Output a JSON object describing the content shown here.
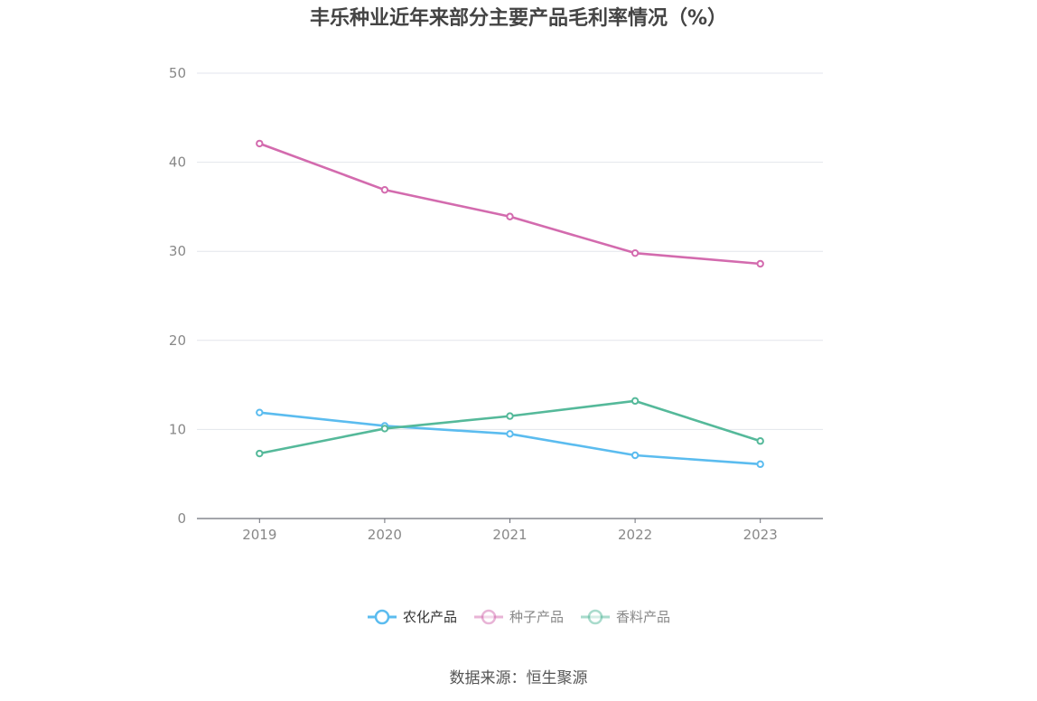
{
  "chart_data": {
    "type": "line",
    "title": "丰乐种业近年来部分主要产品毛利率情况（%）",
    "categories": [
      "2019",
      "2020",
      "2021",
      "2022",
      "2023"
    ],
    "series": [
      {
        "name": "农化产品",
        "color": "#5bbcef",
        "values": [
          11.9,
          10.4,
          9.5,
          7.1,
          6.1
        ]
      },
      {
        "name": "种子产品",
        "color": "#d36bae",
        "values": [
          42.1,
          36.9,
          33.9,
          29.8,
          28.6
        ]
      },
      {
        "name": "香料产品",
        "color": "#55b99a",
        "values": [
          7.3,
          10.1,
          11.5,
          13.2,
          8.7
        ]
      }
    ],
    "ylim": [
      0,
      50
    ],
    "yticks": [
      "0",
      "10",
      "20",
      "30",
      "40",
      "50"
    ],
    "grid": true,
    "legend_position": "bottom",
    "legend_active_index": 0,
    "source": "数据来源：恒生聚源"
  }
}
